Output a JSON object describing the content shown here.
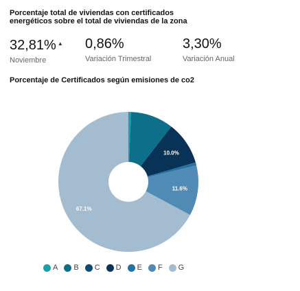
{
  "header": {
    "title": "Porcentaje total de viviendas con certificados energéticos sobre el total de viviendas de la zona"
  },
  "kpis": [
    {
      "value": "32,81%",
      "label": "Noviembre",
      "trend_icon": "arrow-up"
    },
    {
      "value": "0,86%",
      "label": "Variación Trimestral"
    },
    {
      "value": "3,30%",
      "label": "Variación Anual"
    }
  ],
  "chart_title": "Porcentaje de Certificados según emisiones de co2",
  "chart_data": {
    "type": "pie",
    "title": "Porcentaje de Certificados según emisiones de co2",
    "categories": [
      "A",
      "B",
      "C",
      "D",
      "E",
      "F",
      "G"
    ],
    "values": [
      0.6,
      9.9,
      0.0,
      10.0,
      0.7,
      11.6,
      67.1
    ],
    "data_labels": [
      "",
      "",
      "",
      "10.0%",
      "",
      "11.6%",
      "67.1%"
    ],
    "colors": [
      "#19a0a8",
      "#0d6f8a",
      "#0a4a73",
      "#083357",
      "#2471a3",
      "#4f8bb5",
      "#a3bccf"
    ],
    "donut_hole": true,
    "legend_position": "bottom"
  }
}
